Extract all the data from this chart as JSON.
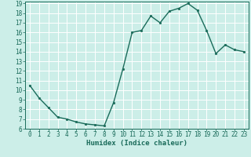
{
  "x": [
    0,
    1,
    2,
    3,
    4,
    5,
    6,
    7,
    8,
    9,
    10,
    11,
    12,
    13,
    14,
    15,
    16,
    17,
    18,
    19,
    20,
    21,
    22,
    23
  ],
  "y": [
    10.5,
    9.2,
    8.2,
    7.2,
    7.0,
    6.7,
    6.5,
    6.4,
    6.3,
    8.7,
    12.2,
    16.0,
    16.2,
    17.7,
    17.0,
    18.2,
    18.5,
    19.0,
    18.3,
    16.2,
    13.8,
    14.7,
    14.2,
    14.0
  ],
  "line_color": "#1a6b5a",
  "marker": "o",
  "marker_size": 2.0,
  "bg_color": "#cceee8",
  "grid_color": "#ffffff",
  "xlabel": "Humidex (Indice chaleur)",
  "ylim": [
    6,
    19
  ],
  "xlim": [
    -0.5,
    23.5
  ],
  "yticks": [
    6,
    7,
    8,
    9,
    10,
    11,
    12,
    13,
    14,
    15,
    16,
    17,
    18,
    19
  ],
  "xticks": [
    0,
    1,
    2,
    3,
    4,
    5,
    6,
    7,
    8,
    9,
    10,
    11,
    12,
    13,
    14,
    15,
    16,
    17,
    18,
    19,
    20,
    21,
    22,
    23
  ],
  "tick_fontsize": 5.5,
  "label_fontsize": 6.5,
  "label_color": "#1a6b5a",
  "tick_color": "#1a6b5a",
  "spine_color": "#1a6b5a",
  "line_width": 1.0
}
